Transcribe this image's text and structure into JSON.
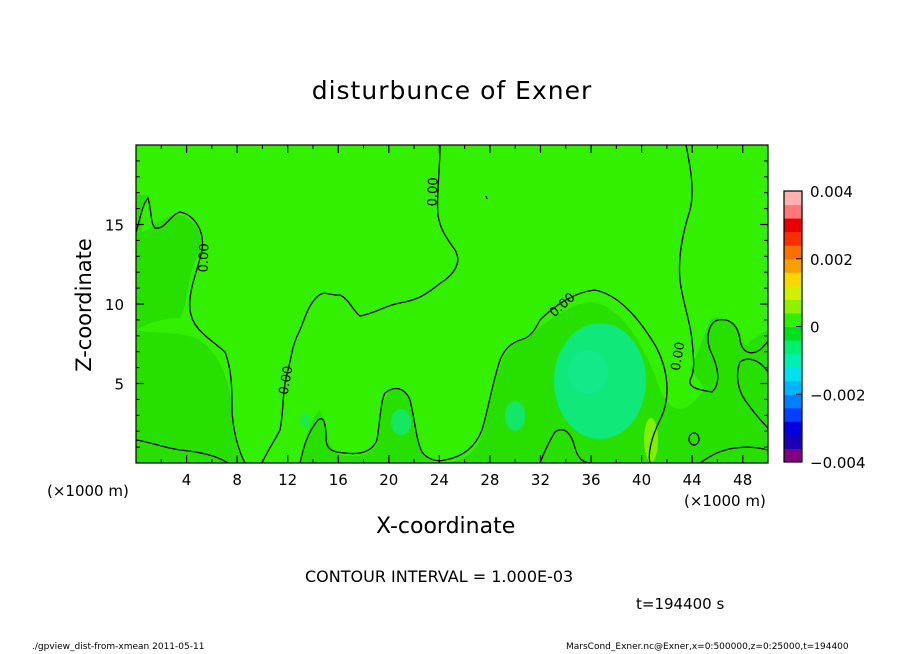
{
  "chart_data": {
    "type": "heatmap",
    "title": "disturbunce of Exner",
    "xlabel": "X-coordinate",
    "ylabel": "Z-coordinate",
    "x_unit_label": "(×1000 m)",
    "y_unit_label": "(×1000 m)",
    "xlim": [
      0,
      50
    ],
    "ylim": [
      0,
      20
    ],
    "x_ticks": [
      4,
      8,
      12,
      16,
      20,
      24,
      28,
      32,
      36,
      40,
      44,
      48
    ],
    "y_ticks": [
      5,
      10,
      15
    ],
    "colorbar": {
      "range": [
        -0.004,
        0.004
      ],
      "tick_values": [
        0.004,
        0.002,
        0,
        -0.002,
        -0.004
      ],
      "tick_labels": [
        "0.004",
        "0.002",
        "0",
        "−0.002",
        "−0.004"
      ],
      "colors": [
        "#800080",
        "#1a00b0",
        "#0000e0",
        "#0040ff",
        "#0080ff",
        "#00b4ff",
        "#00e0f0",
        "#00f0b0",
        "#00f070",
        "#00e020",
        "#30f000",
        "#90f000",
        "#d0f000",
        "#f8d800",
        "#f8a000",
        "#f87000",
        "#f83000",
        "#e80000",
        "#ff7878",
        "#ffb0b0"
      ]
    },
    "contour_labels": [
      "0.00",
      "0.00",
      "0.00",
      "0.00",
      "0.00"
    ],
    "contour_interval_text": "CONTOUR INTERVAL = 1.000E-03",
    "time_text": "t=194400 s"
  },
  "footer": {
    "left": "./gpview_dist-from-xmean  2011-05-11",
    "right": "MarsCond_Exner.nc@Exner,x=0:500000,z=0:25000,t=194400"
  }
}
